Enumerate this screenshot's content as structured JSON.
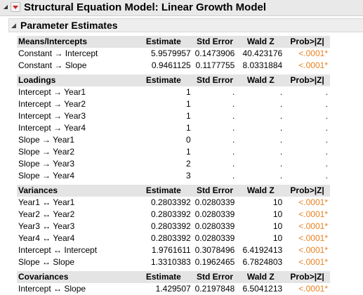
{
  "window": {
    "title": "Structural Equation Model: Linear Growth Model"
  },
  "panel": {
    "title": "Parameter Estimates"
  },
  "columns": [
    "Estimate",
    "Std Error",
    "Wald Z",
    "Prob>|Z|"
  ],
  "sections": [
    {
      "name": "Means/Intercepts",
      "rows": [
        {
          "label": "Constant → Intercept",
          "estimate": "5.9579957",
          "stderr": "0.1473906",
          "waldz": "40.423176",
          "prob": "<.0001*"
        },
        {
          "label": "Constant → Slope",
          "estimate": "0.9461125",
          "stderr": "0.1177755",
          "waldz": "8.0331884",
          "prob": "<.0001*"
        }
      ]
    },
    {
      "name": "Loadings",
      "rows": [
        {
          "label": "Intercept → Year1",
          "estimate": "1",
          "stderr": ".",
          "waldz": ".",
          "prob": "."
        },
        {
          "label": "Intercept → Year2",
          "estimate": "1",
          "stderr": ".",
          "waldz": ".",
          "prob": "."
        },
        {
          "label": "Intercept → Year3",
          "estimate": "1",
          "stderr": ".",
          "waldz": ".",
          "prob": "."
        },
        {
          "label": "Intercept → Year4",
          "estimate": "1",
          "stderr": ".",
          "waldz": ".",
          "prob": "."
        },
        {
          "label": "Slope → Year1",
          "estimate": "0",
          "stderr": ".",
          "waldz": ".",
          "prob": "."
        },
        {
          "label": "Slope → Year2",
          "estimate": "1",
          "stderr": ".",
          "waldz": ".",
          "prob": "."
        },
        {
          "label": "Slope → Year3",
          "estimate": "2",
          "stderr": ".",
          "waldz": ".",
          "prob": "."
        },
        {
          "label": "Slope → Year4",
          "estimate": "3",
          "stderr": ".",
          "waldz": ".",
          "prob": "."
        }
      ]
    },
    {
      "name": "Variances",
      "rows": [
        {
          "label": "Year1 ↔ Year1",
          "estimate": "0.2803392",
          "stderr": "0.0280339",
          "waldz": "10",
          "prob": "<.0001*"
        },
        {
          "label": "Year2 ↔ Year2",
          "estimate": "0.2803392",
          "stderr": "0.0280339",
          "waldz": "10",
          "prob": "<.0001*"
        },
        {
          "label": "Year3 ↔ Year3",
          "estimate": "0.2803392",
          "stderr": "0.0280339",
          "waldz": "10",
          "prob": "<.0001*"
        },
        {
          "label": "Year4 ↔ Year4",
          "estimate": "0.2803392",
          "stderr": "0.0280339",
          "waldz": "10",
          "prob": "<.0001*"
        },
        {
          "label": "Intercept ↔ Intercept",
          "estimate": "1.9761611",
          "stderr": "0.3078496",
          "waldz": "6.4192413",
          "prob": "<.0001*"
        },
        {
          "label": "Slope ↔ Slope",
          "estimate": "1.3310383",
          "stderr": "0.1962465",
          "waldz": "6.7824803",
          "prob": "<.0001*"
        }
      ]
    },
    {
      "name": "Covariances",
      "rows": [
        {
          "label": "Intercept ↔ Slope",
          "estimate": "1.429507",
          "stderr": "0.2197848",
          "waldz": "6.5041213",
          "prob": "<.0001*"
        }
      ]
    }
  ],
  "colors": {
    "significant": "#e8801e",
    "menu_arrow": "#d32020",
    "header_bg": "#e4e4e4"
  },
  "icons": {
    "outer_disclosure": "triangle-down-icon",
    "menu": "red-triangle-menu-icon",
    "panel_disclosure": "triangle-down-icon"
  }
}
